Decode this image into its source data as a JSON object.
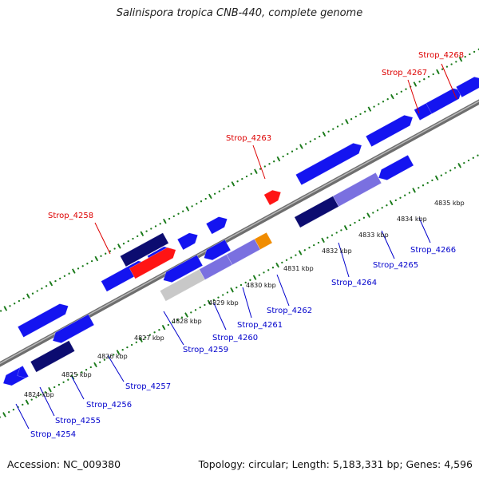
{
  "title": "Salinispora tropica CNB-440, complete genome",
  "footer": {
    "accession": "Accession: NC_009380",
    "topology": "Topology: circular; Length: 5,183,331 bp; Genes: 4,596"
  },
  "colors": {
    "forward_label": "#dd0000",
    "reverse_label": "#0000cc",
    "tick": "#1a7a1a",
    "backbone": "#8c8c8c"
  },
  "kbp_ticks": [
    "4824 kbp",
    "4825 kbp",
    "4826 kbp",
    "4827 kbp",
    "4828 kbp",
    "4829 kbp",
    "4830 kbp",
    "4831 kbp",
    "4832 kbp",
    "4833 kbp",
    "4834 kbp",
    "4835 kbp"
  ],
  "forward_labels": [
    "Strop_4258",
    "Strop_4263",
    "Strop_4267",
    "Strop_4268"
  ],
  "reverse_labels": [
    "Strop_4254",
    "Strop_4255",
    "Strop_4256",
    "Strop_4257",
    "Strop_4259",
    "Strop_4260",
    "Strop_4261",
    "Strop_4262",
    "Strop_4264",
    "Strop_4265",
    "Strop_4266"
  ],
  "gene_colors": {
    "cds": "#1414f0",
    "navy": "#0c0c70",
    "red": "#ff1414",
    "purple": "#7a70e0",
    "gray": "#c8c8c8",
    "orange": "#f08c00"
  }
}
